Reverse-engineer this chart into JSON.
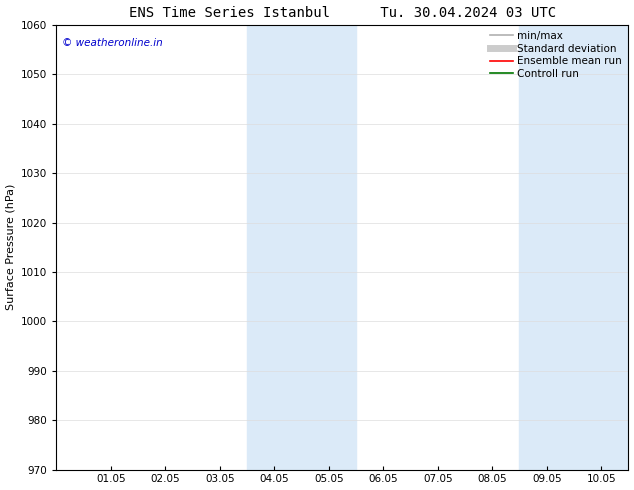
{
  "title": "ENS Time Series Istanbul      Tu. 30.04.2024 03 UTC",
  "ylabel": "Surface Pressure (hPa)",
  "ylim": [
    970,
    1060
  ],
  "yticks": [
    970,
    980,
    990,
    1000,
    1010,
    1020,
    1030,
    1040,
    1050,
    1060
  ],
  "xtick_labels": [
    "01.05",
    "02.05",
    "03.05",
    "04.05",
    "05.05",
    "06.05",
    "07.05",
    "08.05",
    "09.05",
    "10.05"
  ],
  "xtick_positions": [
    1,
    2,
    3,
    4,
    5,
    6,
    7,
    8,
    9,
    10
  ],
  "xlim": [
    0.0,
    10.5
  ],
  "shaded_bands": [
    {
      "x_start": 3.5,
      "x_end": 5.5
    },
    {
      "x_start": 8.5,
      "x_end": 10.5
    }
  ],
  "shaded_color": "#dbeaf8",
  "watermark_text": "© weatheronline.in",
  "watermark_color": "#0000cc",
  "legend_items": [
    {
      "label": "min/max",
      "color": "#b0b0b0",
      "lw": 1.2,
      "ls": "-"
    },
    {
      "label": "Standard deviation",
      "color": "#cccccc",
      "lw": 5,
      "ls": "-"
    },
    {
      "label": "Ensemble mean run",
      "color": "#ff0000",
      "lw": 1.2,
      "ls": "-"
    },
    {
      "label": "Controll run",
      "color": "#007700",
      "lw": 1.2,
      "ls": "-"
    }
  ],
  "background_color": "#ffffff",
  "grid_color": "#dddddd",
  "title_fontsize": 10,
  "label_fontsize": 8,
  "tick_fontsize": 7.5
}
